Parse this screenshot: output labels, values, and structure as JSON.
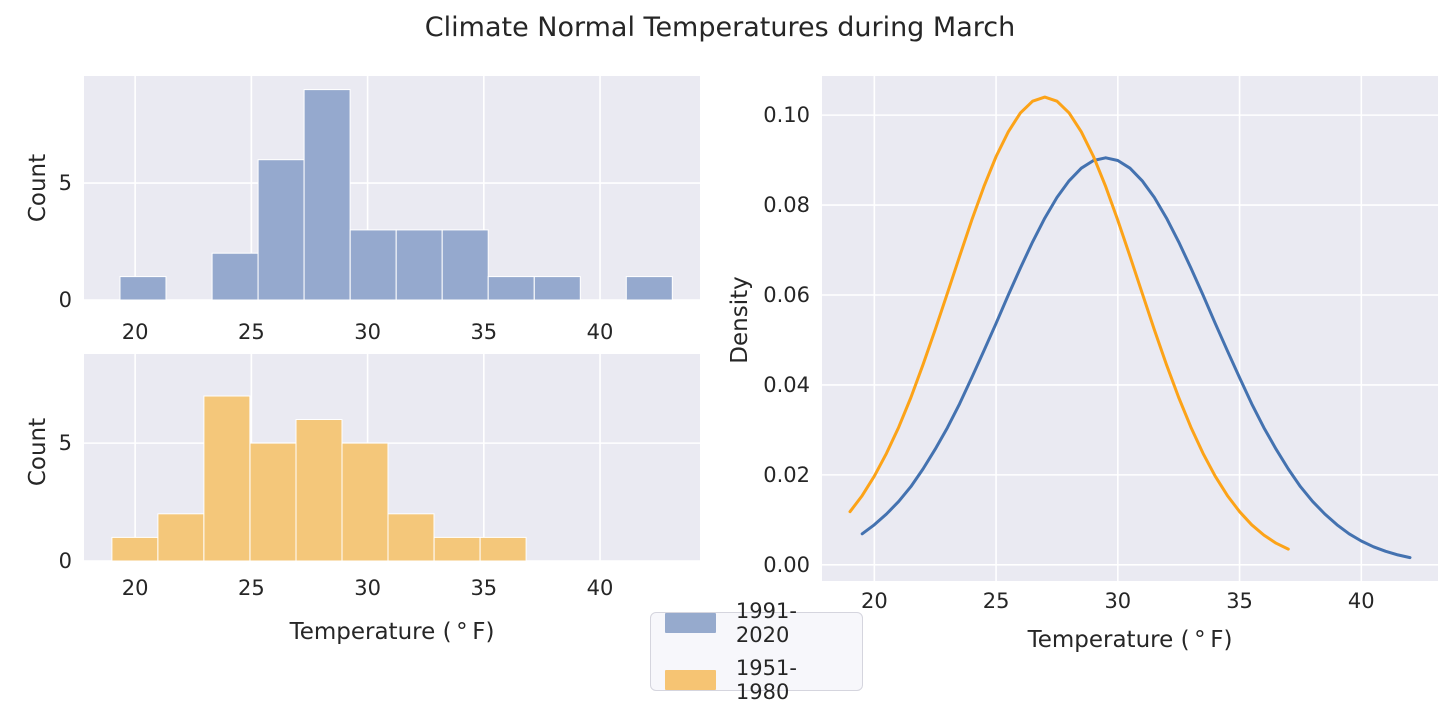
{
  "title": "Climate Normal Temperatures during March",
  "axes": {
    "count_label": "Count",
    "density_label": "Density",
    "temp_label": "Temperature ( ° F)"
  },
  "legend": {
    "entries": [
      {
        "label": "1991-2020",
        "color": "#96aacd"
      },
      {
        "label": "1951-1980",
        "color": "#f6c473"
      }
    ]
  },
  "colors": {
    "figure_bg": "#ffffff",
    "panel_bg": "#eaeaf2",
    "grid": "#ffffff",
    "text": "#262626",
    "blue_line": "#4472b0",
    "orange_line": "#fca318"
  },
  "chart_data": [
    {
      "id": "hist_1991_2020",
      "type": "bar",
      "series_label": "1991-2020",
      "bar_color": "#95a9ce",
      "bar_edge_color": "#ffffff",
      "bin_start": 19.35,
      "bin_width": 1.98,
      "counts": [
        1,
        0,
        2,
        6,
        9,
        3,
        3,
        3,
        1,
        1,
        0,
        1
      ],
      "ylabel": "Count",
      "xlim": [
        17.8,
        44.3
      ],
      "ylim": [
        0,
        9.58
      ],
      "xticks": [
        {
          "v": 20,
          "label": "20"
        },
        {
          "v": 25,
          "label": "25"
        },
        {
          "v": 30,
          "label": "30"
        },
        {
          "v": 35,
          "label": "35"
        },
        {
          "v": 40,
          "label": "40"
        }
      ],
      "yticks": [
        {
          "v": 0,
          "label": "0"
        },
        {
          "v": 5,
          "label": "5"
        }
      ]
    },
    {
      "id": "hist_1951_1980",
      "type": "bar",
      "series_label": "1951-1980",
      "bar_color": "#f4c77a",
      "bar_edge_color": "#ffffff",
      "bin_start": 19.0,
      "bin_width": 1.98,
      "counts": [
        1,
        2,
        7,
        5,
        6,
        5,
        2,
        1,
        1
      ],
      "ylabel": "Count",
      "xlabel": "Temperature ( ° F)",
      "xlim": [
        17.8,
        44.3
      ],
      "ylim": [
        0,
        8.78
      ],
      "xticks": [
        {
          "v": 20,
          "label": "20"
        },
        {
          "v": 25,
          "label": "25"
        },
        {
          "v": 30,
          "label": "30"
        },
        {
          "v": 35,
          "label": "35"
        },
        {
          "v": 40,
          "label": "40"
        }
      ],
      "yticks": [
        {
          "v": 0,
          "label": "0"
        },
        {
          "v": 5,
          "label": "5"
        }
      ]
    },
    {
      "id": "kde",
      "type": "line",
      "ylabel": "Density",
      "xlabel": "Temperature ( ° F)",
      "xlim": [
        17.85,
        43.15
      ],
      "ylim": [
        -0.0036,
        0.1087
      ],
      "xticks": [
        {
          "v": 20,
          "label": "20"
        },
        {
          "v": 25,
          "label": "25"
        },
        {
          "v": 30,
          "label": "30"
        },
        {
          "v": 35,
          "label": "35"
        },
        {
          "v": 40,
          "label": "40"
        }
      ],
      "yticks": [
        {
          "v": 0.0,
          "label": "0.00"
        },
        {
          "v": 0.02,
          "label": "0.02"
        },
        {
          "v": 0.04,
          "label": "0.04"
        },
        {
          "v": 0.06,
          "label": "0.06"
        },
        {
          "v": 0.08,
          "label": "0.08"
        },
        {
          "v": 0.1,
          "label": "0.10"
        }
      ],
      "series": [
        {
          "name": "1991-2020",
          "color": "#4472b0",
          "peak": {
            "x": 29.5,
            "y": 0.0905
          },
          "x_start": 19.5,
          "x_step": 0.5,
          "y": [
            0.0069,
            0.0089,
            0.0113,
            0.0141,
            0.0174,
            0.0213,
            0.0257,
            0.0305,
            0.0358,
            0.0416,
            0.0476,
            0.0537,
            0.06,
            0.066,
            0.0718,
            0.0771,
            0.0817,
            0.0854,
            0.0882,
            0.0899,
            0.0905,
            0.0899,
            0.0882,
            0.0854,
            0.0817,
            0.0771,
            0.0718,
            0.066,
            0.06,
            0.0537,
            0.0476,
            0.0416,
            0.0358,
            0.0305,
            0.0257,
            0.0213,
            0.0174,
            0.0141,
            0.0113,
            0.0089,
            0.0069,
            0.0053,
            0.004,
            0.003,
            0.0022,
            0.0016
          ]
        },
        {
          "name": "1951-1980",
          "color": "#fca318",
          "peak": {
            "x": 27.0,
            "y": 0.104
          },
          "x_start": 19.0,
          "x_step": 0.5,
          "y": [
            0.0118,
            0.0154,
            0.0197,
            0.0248,
            0.0306,
            0.0372,
            0.0445,
            0.0523,
            0.0604,
            0.0686,
            0.0766,
            0.0841,
            0.0908,
            0.0963,
            0.1005,
            0.1031,
            0.104,
            0.1031,
            0.1005,
            0.0963,
            0.0908,
            0.0841,
            0.0766,
            0.0686,
            0.0604,
            0.0523,
            0.0445,
            0.0372,
            0.0306,
            0.0248,
            0.0197,
            0.0154,
            0.0118,
            0.0089,
            0.0066,
            0.0048,
            0.0035
          ]
        }
      ]
    }
  ]
}
